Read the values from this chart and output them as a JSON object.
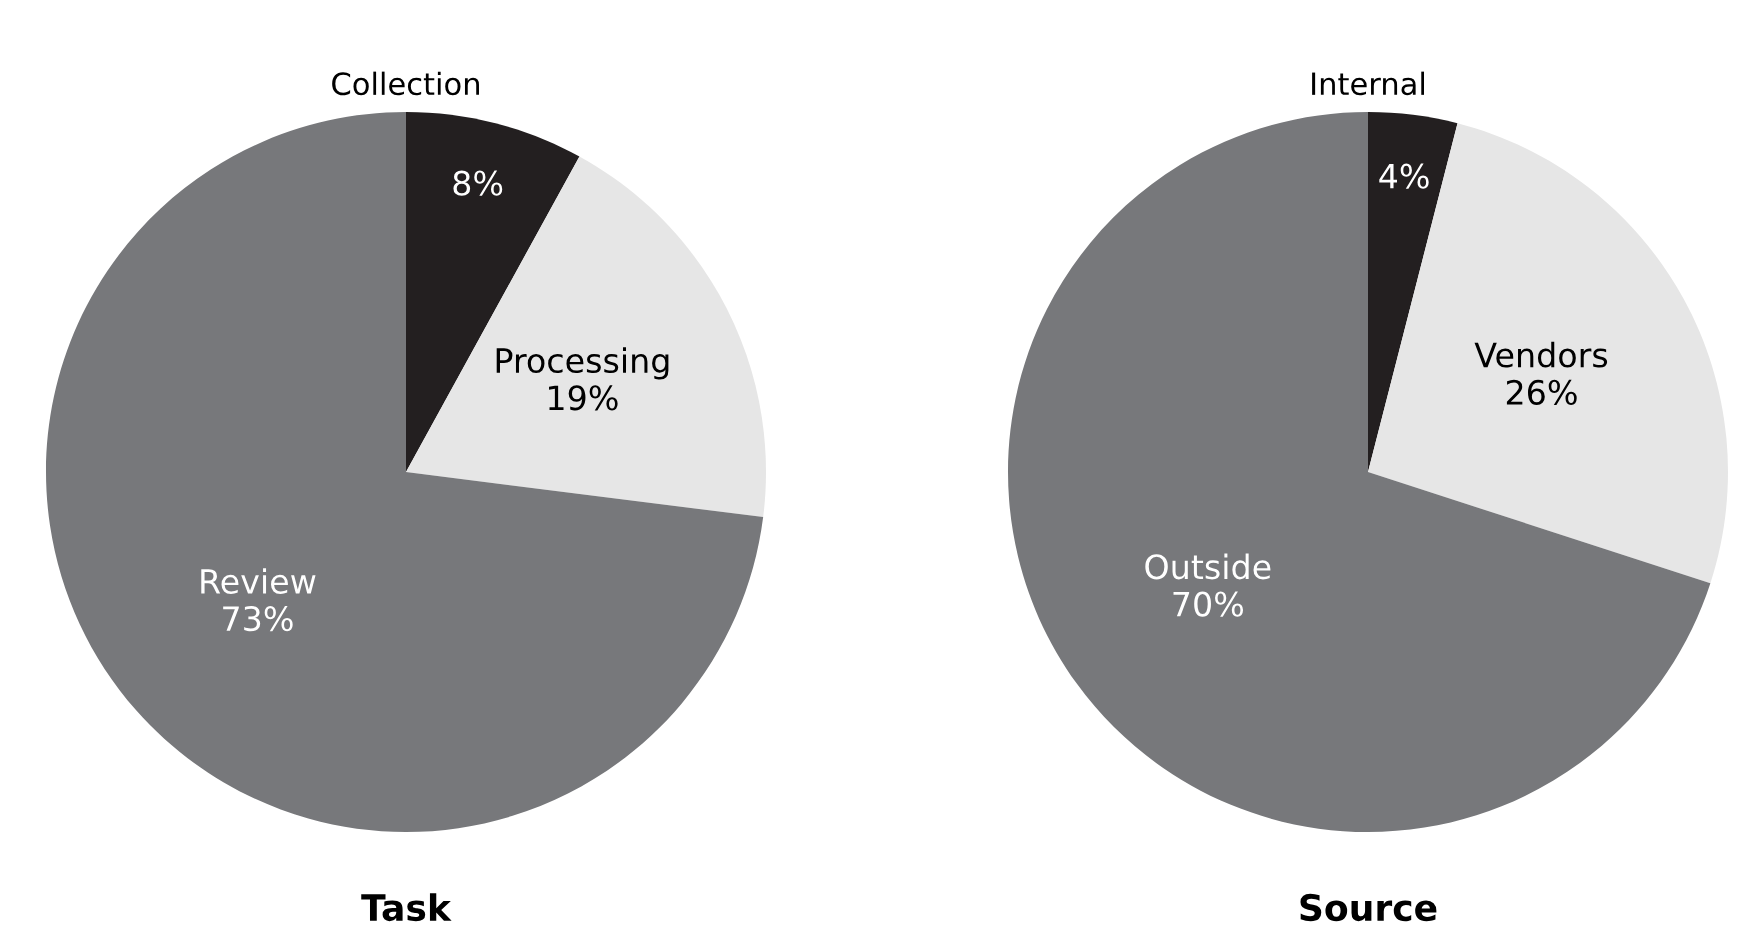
{
  "chart_data": [
    {
      "type": "pie",
      "title": "Task",
      "categories": [
        "Collection",
        "Processing",
        "Review"
      ],
      "values": [
        8,
        19,
        73
      ],
      "value_labels": [
        "8%",
        "19%",
        "73%"
      ],
      "colors": [
        "#231f20",
        "#e6e6e6",
        "#77787b"
      ]
    },
    {
      "type": "pie",
      "title": "Source",
      "categories": [
        "Internal",
        "Vendors",
        "Outside"
      ],
      "values": [
        4,
        26,
        70
      ],
      "value_labels": [
        "4%",
        "26%",
        "70%"
      ],
      "colors": [
        "#231f20",
        "#e6e6e6",
        "#77787b"
      ]
    }
  ]
}
